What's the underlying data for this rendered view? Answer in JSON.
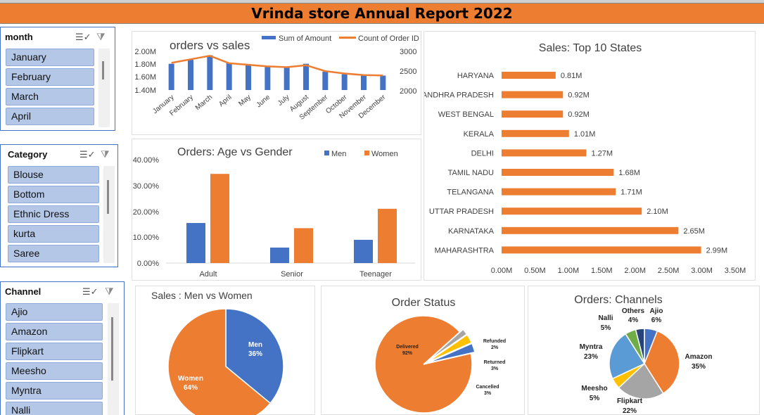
{
  "header": {
    "title": "Vrinda store Annual Report 2022"
  },
  "slicers": {
    "month": {
      "title": "month",
      "items": [
        "January",
        "February",
        "March",
        "April"
      ]
    },
    "category": {
      "title": "Category",
      "items": [
        "Blouse",
        "Bottom",
        "Ethnic Dress",
        "kurta",
        "Saree"
      ]
    },
    "channel": {
      "title": "Channel",
      "items": [
        "Ajio",
        "Amazon",
        "Flipkart",
        "Meesho",
        "Myntra",
        "Nalli"
      ]
    }
  },
  "charts": {
    "orders_vs_sales": {
      "type": "combo-bar-line",
      "title": "orders vs sales",
      "legend": [
        "Sum of Amount",
        "Count of Order ID"
      ],
      "categories": [
        "January",
        "February",
        "March",
        "April",
        "May",
        "June",
        "July",
        "August",
        "September",
        "October",
        "November",
        "December"
      ],
      "amount": [
        1.8,
        1.86,
        1.93,
        1.81,
        1.78,
        1.75,
        1.74,
        1.8,
        1.68,
        1.64,
        1.62,
        1.62
      ],
      "orders": [
        2690,
        2780,
        2870,
        2680,
        2640,
        2600,
        2580,
        2630,
        2480,
        2420,
        2380,
        2370
      ],
      "y_left_ticks": [
        "2.00M",
        "1.80M",
        "1.60M",
        "1.40M"
      ],
      "y_right_ticks": [
        "3000",
        "2500",
        "2000"
      ],
      "colors": {
        "bar": "#4472C4",
        "line": "#ED7D31"
      }
    },
    "age_gender": {
      "type": "bar",
      "title": "Orders: Age vs Gender",
      "legend": [
        "Men",
        "Women"
      ],
      "categories": [
        "Adult",
        "Senior",
        "Teenager"
      ],
      "series": [
        {
          "name": "Men",
          "values": [
            15.5,
            6.0,
            9.0
          ]
        },
        {
          "name": "Women",
          "values": [
            34.5,
            13.5,
            21.0
          ]
        }
      ],
      "y_ticks": [
        "40.00%",
        "30.00%",
        "20.00%",
        "10.00%",
        "0.00%"
      ],
      "ylim": [
        0,
        40
      ]
    },
    "top_states": {
      "type": "bar",
      "title": "Sales: Top 10 States",
      "states": [
        "HARYANA",
        "ANDHRA PRADESH",
        "WEST BENGAL",
        "KERALA",
        "DELHI",
        "TAMIL NADU",
        "TELANGANA",
        "UTTAR PRADESH",
        "KARNATAKA",
        "MAHARASHTRA"
      ],
      "values": [
        0.81,
        0.92,
        0.92,
        1.01,
        1.27,
        1.68,
        1.71,
        2.1,
        2.65,
        2.99
      ],
      "labels": [
        "0.81M",
        "0.92M",
        "0.92M",
        "1.01M",
        "1.27M",
        "1.68M",
        "1.71M",
        "2.10M",
        "2.65M",
        "2.99M"
      ],
      "x_ticks": [
        "0.00M",
        "0.50M",
        "1.00M",
        "1.50M",
        "2.00M",
        "2.50M",
        "3.00M",
        "3.50M"
      ],
      "xlim": [
        0,
        3.5
      ]
    },
    "men_women": {
      "type": "pie",
      "title": "Sales : Men vs Women",
      "slices": [
        {
          "name": "Men",
          "value": 36,
          "label": "36%",
          "color": "#4472C4"
        },
        {
          "name": "Women",
          "value": 64,
          "label": "64%",
          "color": "#ED7D31"
        }
      ]
    },
    "order_status": {
      "type": "pie",
      "title": "Order Status",
      "slices": [
        {
          "name": "Delivered",
          "value": 92,
          "label": "92%",
          "color": "#ED7D31"
        },
        {
          "name": "Refunded",
          "value": 2,
          "label": "2%",
          "color": "#A5A5A5"
        },
        {
          "name": "Returned",
          "value": 3,
          "label": "3%",
          "color": "#FFC000"
        },
        {
          "name": "Cancelled",
          "value": 3,
          "label": "3%",
          "color": "#4472C4"
        }
      ]
    },
    "channels": {
      "type": "pie",
      "title": "Orders: Channels",
      "slices": [
        {
          "name": "Ajio",
          "value": 6,
          "label": "6%",
          "color": "#4472C4"
        },
        {
          "name": "Amazon",
          "value": 35,
          "label": "35%",
          "color": "#ED7D31"
        },
        {
          "name": "Flipkart",
          "value": 22,
          "label": "22%",
          "color": "#A5A5A5"
        },
        {
          "name": "Meesho",
          "value": 5,
          "label": "5%",
          "color": "#FFC000"
        },
        {
          "name": "Myntra",
          "value": 23,
          "label": "23%",
          "color": "#5B9BD5"
        },
        {
          "name": "Nalli",
          "value": 5,
          "label": "5%",
          "color": "#70AD47"
        },
        {
          "name": "Others",
          "value": 4,
          "label": "4%",
          "color": "#264478"
        }
      ]
    }
  }
}
